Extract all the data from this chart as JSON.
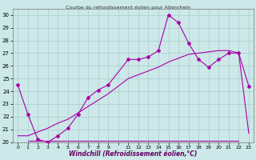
{
  "title": "Courbe du refroidissement éolien pour Altenrhein",
  "xlabel": "Windchill (Refroidissement éolien,°C)",
  "bg_color": "#cce8e8",
  "grid_color": "#aacccc",
  "line_color": "#aa00aa",
  "xlim": [
    -0.5,
    23.5
  ],
  "ylim": [
    20,
    30.5
  ],
  "yticks": [
    20,
    21,
    22,
    23,
    24,
    25,
    26,
    27,
    28,
    29,
    30
  ],
  "x_tick_labels": [
    "0",
    "1",
    "2",
    "3",
    "4",
    "5",
    "6",
    "7",
    "8",
    "9",
    "",
    "11",
    "12",
    "13",
    "14",
    "15",
    "16",
    "17",
    "18",
    "19",
    "20",
    "21",
    "22",
    "23"
  ],
  "x_tick_positions": [
    0,
    1,
    2,
    3,
    4,
    5,
    6,
    7,
    8,
    9,
    10,
    11,
    12,
    13,
    14,
    15,
    16,
    17,
    18,
    19,
    20,
    21,
    22,
    23
  ],
  "series1_x": [
    1,
    2,
    3,
    4,
    5,
    6,
    7,
    8,
    9,
    10,
    11,
    12,
    13,
    14,
    15,
    16,
    17,
    18,
    19,
    20,
    21,
    22
  ],
  "series1_y": [
    20.1,
    20.1,
    20.1,
    20.1,
    20.1,
    20.1,
    20.1,
    20.1,
    20.1,
    20.1,
    20.1,
    20.1,
    20.1,
    20.1,
    20.1,
    20.1,
    20.1,
    20.1,
    20.1,
    20.1,
    20.1,
    20.1
  ],
  "series2_x": [
    0,
    1,
    2,
    3,
    4,
    5,
    6,
    7,
    8,
    9,
    11,
    12,
    13,
    14,
    15,
    16,
    17,
    18,
    19,
    20,
    21,
    22,
    23
  ],
  "series2_y": [
    24.5,
    22.2,
    20.2,
    20.0,
    20.5,
    21.1,
    22.2,
    23.5,
    24.1,
    24.5,
    26.5,
    26.5,
    26.7,
    27.2,
    30.0,
    29.4,
    27.8,
    26.5,
    25.9,
    26.5,
    27.0,
    27.0,
    24.4
  ],
  "series3_x": [
    0,
    1,
    2,
    3,
    4,
    5,
    6,
    7,
    8,
    9,
    11,
    12,
    13,
    14,
    15,
    16,
    17,
    18,
    19,
    20,
    21,
    22,
    23
  ],
  "series3_y": [
    20.5,
    20.5,
    20.8,
    21.1,
    21.5,
    21.8,
    22.3,
    22.8,
    23.3,
    23.8,
    25.0,
    25.3,
    25.6,
    25.9,
    26.3,
    26.6,
    26.9,
    27.0,
    27.1,
    27.2,
    27.2,
    27.0,
    20.7
  ],
  "series4_x": [
    23
  ],
  "series4_y": [
    20.7
  ]
}
